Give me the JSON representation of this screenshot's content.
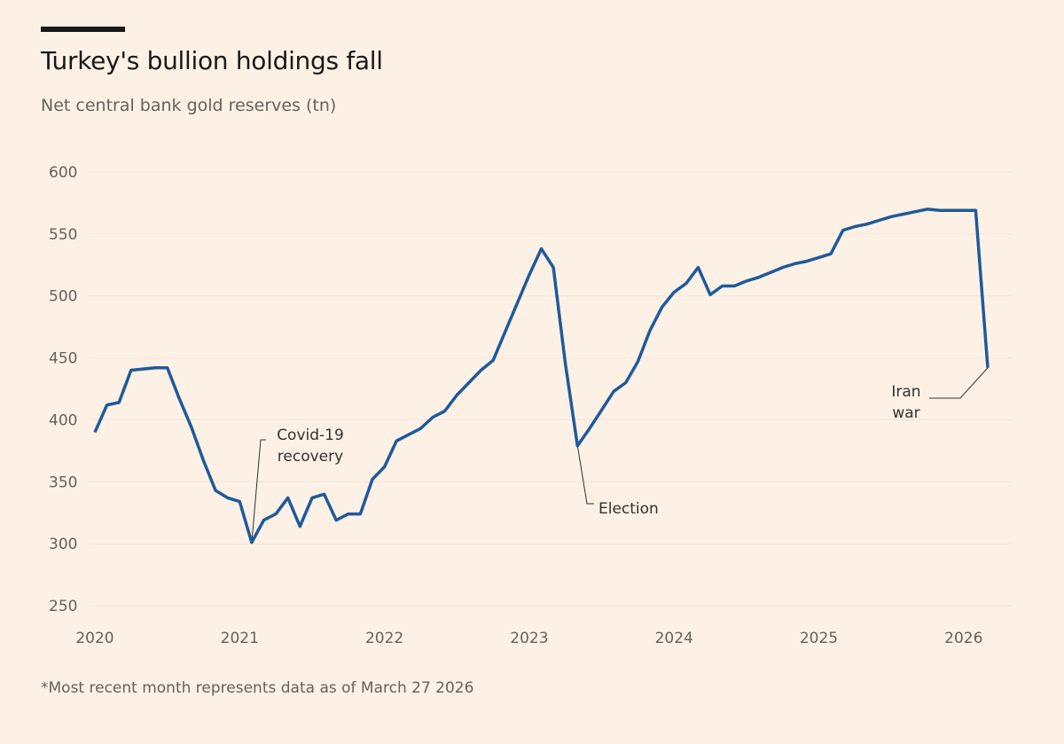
{
  "chart_data": {
    "type": "line",
    "title": "Turkey's bullion holdings fall",
    "subtitle": "Net central bank gold reserves (tn)",
    "footnote": "*Most recent month represents data as of March 27 2026",
    "xlabel": "",
    "ylabel": "",
    "ylim": [
      250,
      600
    ],
    "yticks": [
      "600",
      "550",
      "500",
      "450",
      "400",
      "350",
      "300",
      "250"
    ],
    "xticks": [
      "2020",
      "2021",
      "2022",
      "2023",
      "2024",
      "2025",
      "2026"
    ],
    "xlim": [
      "2020-01",
      "2026-03"
    ],
    "grid": true,
    "line_color": "#1f5a9a",
    "x_start": "2020-01",
    "frequency": "monthly",
    "values": [
      390,
      412,
      414,
      440,
      441,
      442,
      442,
      417,
      394,
      367,
      343,
      337,
      334,
      301,
      319,
      324,
      337,
      314,
      337,
      340,
      319,
      324,
      324,
      352,
      362,
      383,
      388,
      393,
      402,
      407,
      420,
      430,
      440,
      448,
      471,
      494,
      517,
      538,
      523,
      445,
      379,
      393,
      408,
      423,
      430,
      447,
      472,
      491,
      503,
      510,
      523,
      501,
      508,
      508,
      512,
      515,
      519,
      523,
      526,
      528,
      531,
      534,
      553,
      556,
      558,
      561,
      564,
      566,
      568,
      570,
      569,
      569,
      569,
      569,
      442
    ],
    "annotations": [
      {
        "text": [
          "Covid-19",
          "recovery"
        ],
        "x": "2021-02"
      },
      {
        "text": [
          "Election"
        ],
        "x": "2023-05"
      },
      {
        "text": [
          "Iran",
          "war"
        ],
        "x": "2026-03"
      }
    ]
  }
}
